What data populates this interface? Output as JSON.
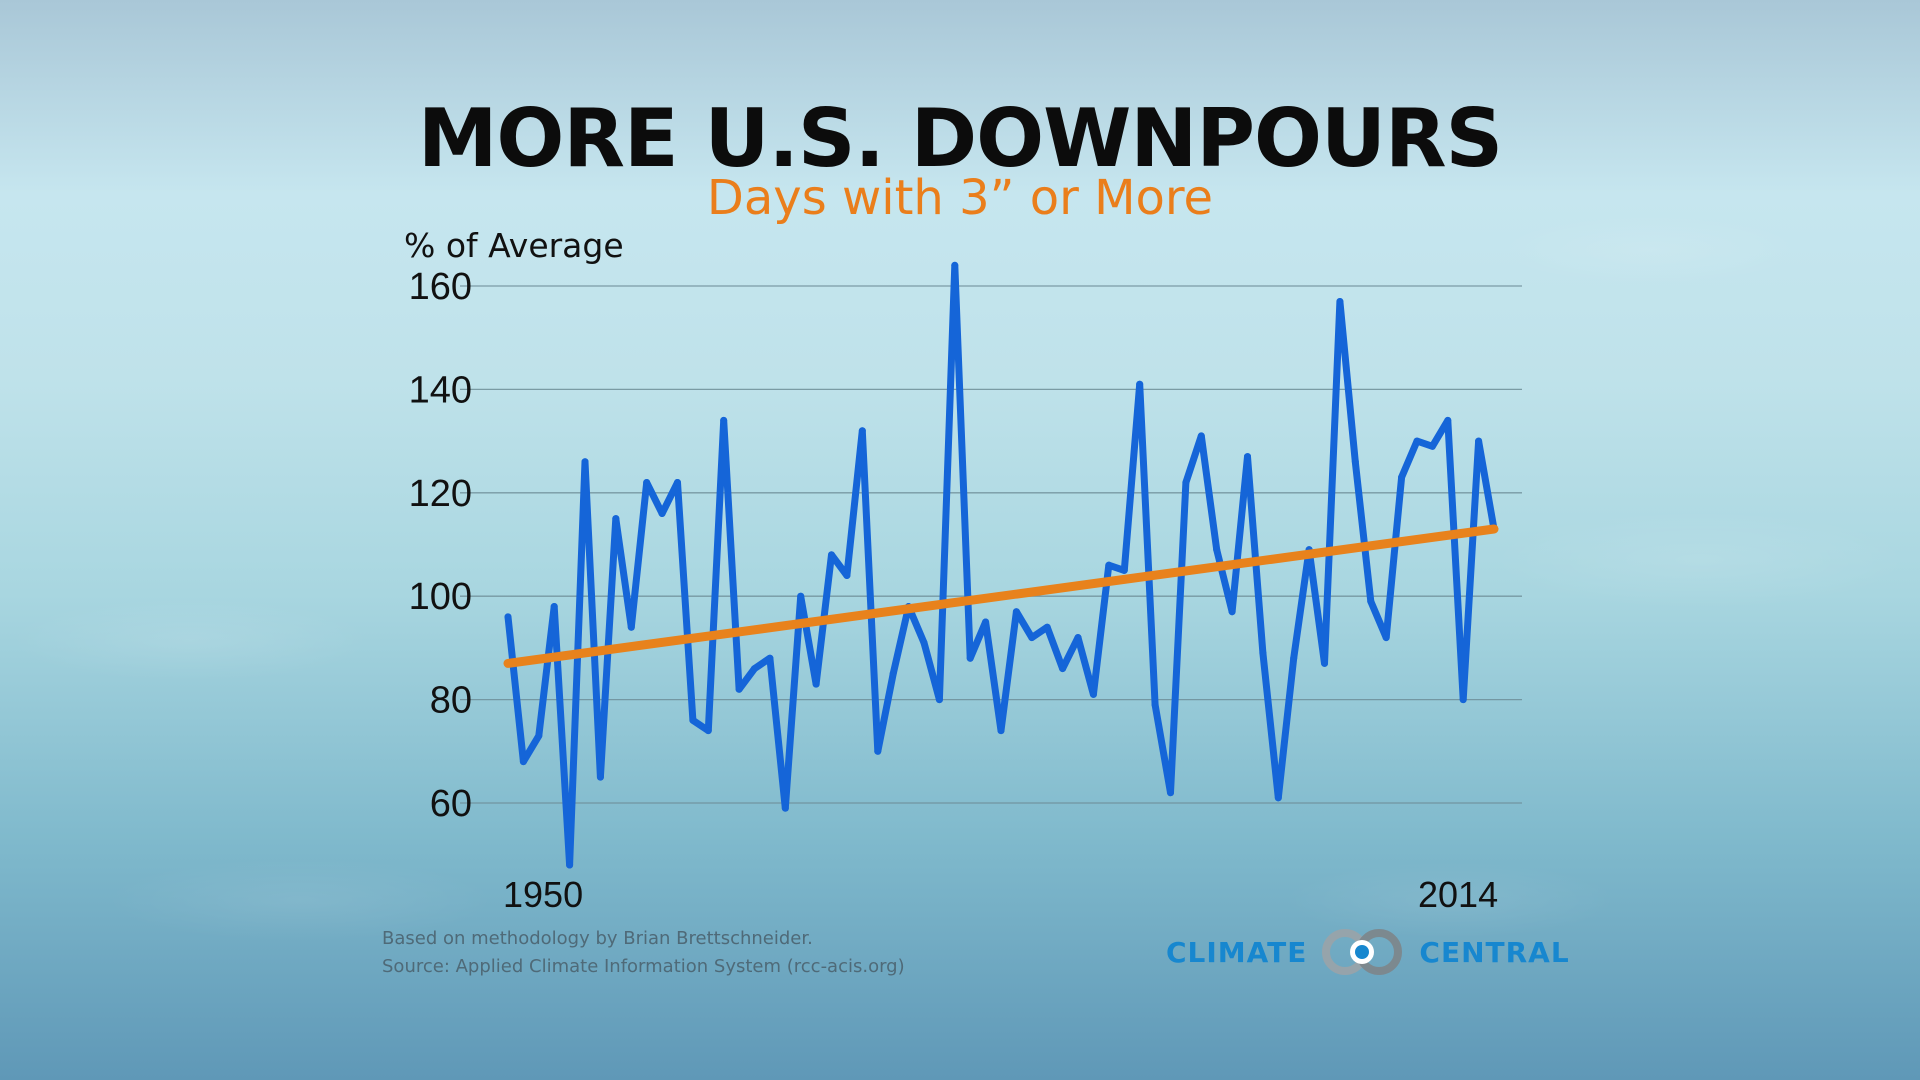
{
  "header": {
    "title": "MORE U.S. DOWNPOURS",
    "subtitle": "Days with 3” or More"
  },
  "footer": {
    "note_1": "Based on methodology by Brian Brettschneider.",
    "note_2": "Source: Applied Climate Information System (rcc-acis.org)",
    "logo_left": "CLIMATE",
    "logo_right": "CENTRAL"
  },
  "chart_data": {
    "type": "line",
    "title": "MORE U.S. DOWNPOURS",
    "subtitle": "Days with 3” or More",
    "ylabel": "% of Average",
    "xlabel": "",
    "x_tick_labels": [
      "1950",
      "2014"
    ],
    "x": [
      1950,
      1951,
      1952,
      1953,
      1954,
      1955,
      1956,
      1957,
      1958,
      1959,
      1960,
      1961,
      1962,
      1963,
      1964,
      1965,
      1966,
      1967,
      1968,
      1969,
      1970,
      1971,
      1972,
      1973,
      1974,
      1975,
      1976,
      1977,
      1978,
      1979,
      1980,
      1981,
      1982,
      1983,
      1984,
      1985,
      1986,
      1987,
      1988,
      1989,
      1990,
      1991,
      1992,
      1993,
      1994,
      1995,
      1996,
      1997,
      1998,
      1999,
      2000,
      2001,
      2002,
      2003,
      2004,
      2005,
      2006,
      2007,
      2008,
      2009,
      2010,
      2011,
      2012,
      2013,
      2014
    ],
    "series": [
      {
        "values": [
          96,
          68,
          73,
          98,
          48,
          126,
          65,
          115,
          94,
          122,
          116,
          122,
          76,
          74,
          134,
          82,
          86,
          88,
          59,
          100,
          83,
          108,
          104,
          132,
          70,
          85,
          98,
          91,
          80,
          164,
          88,
          95,
          74,
          97,
          92,
          94,
          86,
          92,
          81,
          106,
          105,
          141,
          79,
          62,
          122,
          131,
          109,
          97,
          127,
          89,
          61,
          88,
          109,
          87,
          157,
          126,
          99,
          92,
          123,
          130,
          129,
          134,
          80,
          130,
          113
        ]
      }
    ],
    "trend": {
      "start": [
        1950,
        87
      ],
      "end": [
        2014,
        113
      ]
    },
    "y_ticks": [
      60,
      80,
      100,
      120,
      140,
      160
    ],
    "ylim": [
      44,
      168
    ],
    "xlim": [
      1950,
      2014
    ],
    "grid": true,
    "legend": "none",
    "colors": {
      "series": "#1565d8",
      "trend": "#e8821c",
      "grid": "#6f8f99",
      "title": "#0c0c0c",
      "subtitle": "#ea7e1b",
      "logo": "#1787cf"
    }
  }
}
